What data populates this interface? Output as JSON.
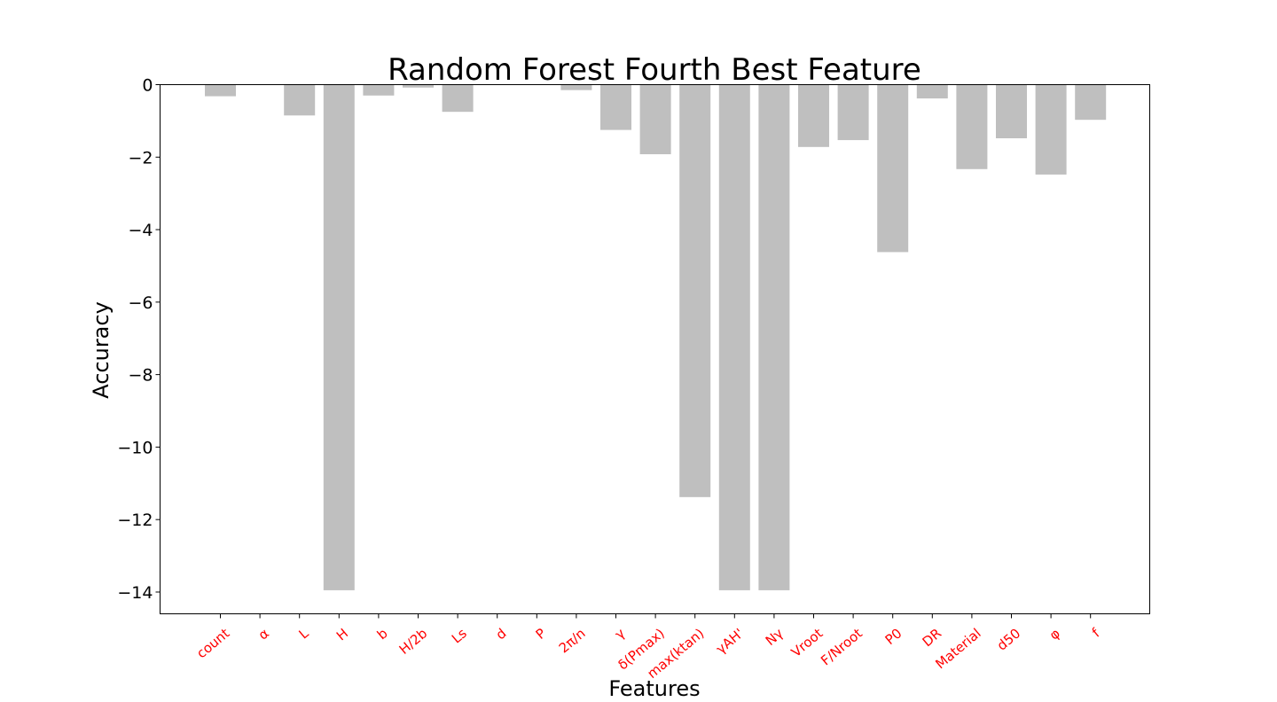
{
  "chart_data": {
    "type": "bar",
    "title": "Random Forest Fourth Best Feature",
    "xlabel": "Features",
    "ylabel": "Accuracy",
    "categories": [
      "count",
      "α",
      "L",
      "H",
      "b",
      "H/2b",
      "Ls",
      "d",
      "P",
      "2π/n",
      "γ",
      "δ(Pmax)",
      "max(ktan)",
      "γAH'",
      "Nγ",
      "Vroot",
      "F/Nroot",
      "P0",
      "DR",
      "Material",
      "d50",
      "φ",
      "f"
    ],
    "values": [
      -0.32,
      0,
      -0.85,
      -13.95,
      -0.3,
      -0.08,
      -0.75,
      0,
      0,
      -0.15,
      -1.25,
      -1.92,
      -11.38,
      -13.95,
      -13.95,
      -1.72,
      -1.53,
      -4.62,
      -0.38,
      -2.33,
      -1.48,
      -2.48,
      -0.97
    ],
    "ylim": [
      -14.6,
      0
    ],
    "yticks": [
      0,
      -2,
      -4,
      -6,
      -8,
      -10,
      -12,
      -14
    ],
    "ytick_labels": [
      "0",
      "−2",
      "−4",
      "−6",
      "−8",
      "−10",
      "−12",
      "−14"
    ],
    "bar_color": "#bfbfbf",
    "xtick_color": "#ff0000",
    "grid": false,
    "legend": false
  }
}
